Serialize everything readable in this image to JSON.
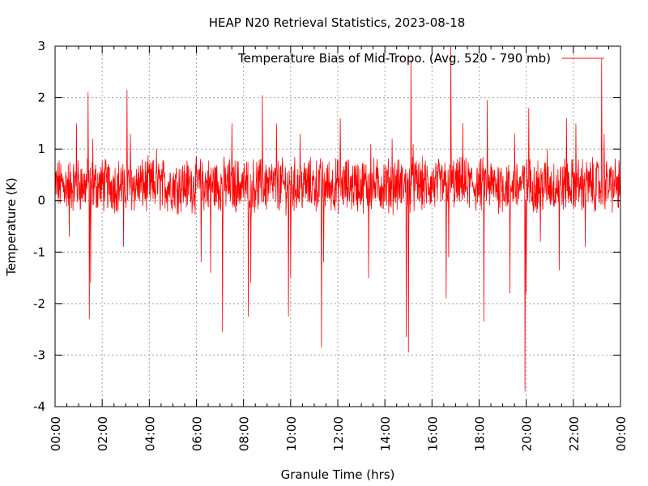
{
  "chart_data": {
    "type": "line",
    "title": "HEAP N20 Retrieval Statistics, 2023-08-18",
    "xlabel": "Granule Time (hrs)",
    "ylabel": "Temperature (K)",
    "xlim": [
      0,
      24
    ],
    "ylim": [
      -4,
      3
    ],
    "x_ticks": [
      "00:00",
      "02:00",
      "04:00",
      "06:00",
      "08:00",
      "10:00",
      "12:00",
      "14:00",
      "16:00",
      "18:00",
      "20:00",
      "22:00",
      "00:00"
    ],
    "y_ticks": [
      "3",
      "2",
      "1",
      "0",
      "-1",
      "-2",
      "-3",
      "-4"
    ],
    "y_tick_values": [
      3,
      2,
      1,
      0,
      -1,
      -2,
      -3,
      -4
    ],
    "grid": true,
    "legend_position": "top-right",
    "series": [
      {
        "name": "Temperature Bias of Mid-Tropo. (Avg. 520 - 790 mb)",
        "color": "#ff0000",
        "baseline": 0.3,
        "noise_amplitude": 0.45,
        "spikes": [
          {
            "x": 0.6,
            "y": -0.7
          },
          {
            "x": 0.9,
            "y": 1.5
          },
          {
            "x": 1.4,
            "y": 2.1
          },
          {
            "x": 1.45,
            "y": -2.3
          },
          {
            "x": 1.5,
            "y": -1.6
          },
          {
            "x": 1.6,
            "y": 1.2
          },
          {
            "x": 2.9,
            "y": -0.9
          },
          {
            "x": 3.05,
            "y": 2.15
          },
          {
            "x": 3.2,
            "y": 1.3
          },
          {
            "x": 4.3,
            "y": 1.0
          },
          {
            "x": 6.2,
            "y": -1.2
          },
          {
            "x": 6.6,
            "y": -1.4
          },
          {
            "x": 7.1,
            "y": -2.55
          },
          {
            "x": 7.5,
            "y": 1.5
          },
          {
            "x": 8.2,
            "y": -2.25
          },
          {
            "x": 8.3,
            "y": -1.6
          },
          {
            "x": 8.8,
            "y": 2.05
          },
          {
            "x": 9.4,
            "y": 1.5
          },
          {
            "x": 9.9,
            "y": -2.25
          },
          {
            "x": 10.0,
            "y": -1.5
          },
          {
            "x": 10.4,
            "y": 1.3
          },
          {
            "x": 11.3,
            "y": -2.85
          },
          {
            "x": 11.4,
            "y": -1.2
          },
          {
            "x": 12.1,
            "y": 1.6
          },
          {
            "x": 13.3,
            "y": -1.5
          },
          {
            "x": 13.4,
            "y": 1.1
          },
          {
            "x": 14.3,
            "y": 1.2
          },
          {
            "x": 14.9,
            "y": -2.65
          },
          {
            "x": 15.0,
            "y": -2.95
          },
          {
            "x": 15.1,
            "y": 2.75
          },
          {
            "x": 15.2,
            "y": 1.1
          },
          {
            "x": 16.6,
            "y": -1.9
          },
          {
            "x": 16.7,
            "y": -1.1
          },
          {
            "x": 16.8,
            "y": 3.0
          },
          {
            "x": 17.3,
            "y": 1.5
          },
          {
            "x": 18.2,
            "y": -2.35
          },
          {
            "x": 18.35,
            "y": 1.95
          },
          {
            "x": 19.3,
            "y": -1.8
          },
          {
            "x": 19.5,
            "y": 1.3
          },
          {
            "x": 19.95,
            "y": -3.7
          },
          {
            "x": 20.0,
            "y": -1.8
          },
          {
            "x": 20.1,
            "y": 1.8
          },
          {
            "x": 20.6,
            "y": -0.8
          },
          {
            "x": 20.9,
            "y": 1.0
          },
          {
            "x": 21.4,
            "y": -1.35
          },
          {
            "x": 21.7,
            "y": 1.6
          },
          {
            "x": 22.1,
            "y": 1.5
          },
          {
            "x": 22.5,
            "y": -0.9
          },
          {
            "x": 23.2,
            "y": 2.75
          },
          {
            "x": 23.3,
            "y": 1.3
          }
        ]
      }
    ]
  }
}
